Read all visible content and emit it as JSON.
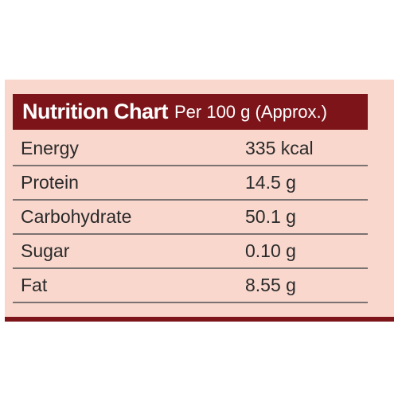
{
  "colors": {
    "panel_background": "#f9d7cd",
    "header_background": "#7d1419",
    "header_text": "#ffffff",
    "row_text": "#2a2a2a",
    "divider": "#7b7272"
  },
  "nutrition_chart": {
    "title": "Nutrition Chart",
    "subtitle": "Per 100 g (Approx.)",
    "rows": [
      {
        "nutrient": "Energy",
        "amount": "335 kcal"
      },
      {
        "nutrient": "Protein",
        "amount": "14.5 g"
      },
      {
        "nutrient": "Carbohydrate",
        "amount": "50.1 g"
      },
      {
        "nutrient": "Sugar",
        "amount": "0.10 g"
      },
      {
        "nutrient": "Fat",
        "amount": "8.55 g"
      }
    ]
  }
}
